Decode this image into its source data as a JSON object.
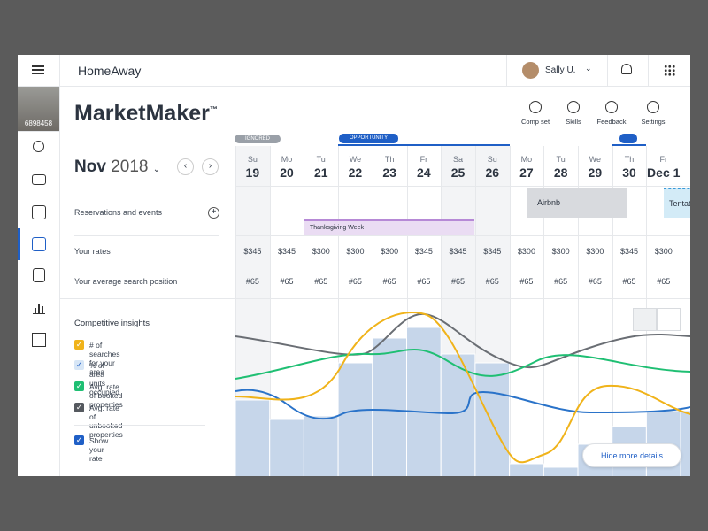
{
  "app": {
    "brand": "HomeAway",
    "user": "Sally U.",
    "listing_id": "6898458"
  },
  "header": {
    "title": "MarketMaker",
    "trademark": "™",
    "tools": [
      "Comp set",
      "Skills",
      "Feedback",
      "Settings"
    ]
  },
  "tags": {
    "ignored": "IGNORED",
    "opportunity": "OPPORTUNITY"
  },
  "calendar": {
    "month": "Nov",
    "year": "2018",
    "days": [
      {
        "weekday": "Su",
        "date": "19"
      },
      {
        "weekday": "Mo",
        "date": "20"
      },
      {
        "weekday": "Tu",
        "date": "21"
      },
      {
        "weekday": "We",
        "date": "22"
      },
      {
        "weekday": "Th",
        "date": "23"
      },
      {
        "weekday": "Fr",
        "date": "24"
      },
      {
        "weekday": "Sa",
        "date": "25"
      },
      {
        "weekday": "Su",
        "date": "26"
      },
      {
        "weekday": "Mo",
        "date": "27"
      },
      {
        "weekday": "Tu",
        "date": "28"
      },
      {
        "weekday": "We",
        "date": "29"
      },
      {
        "weekday": "Th",
        "date": "30"
      },
      {
        "weekday": "Fr",
        "date": "Dec 1"
      }
    ]
  },
  "rows": {
    "events_label": "Reservations and events",
    "rates_label": "Your rates",
    "position_label": "Your average search position"
  },
  "events": {
    "holiday": "Thanksgiving Week",
    "booking": "Airbnb",
    "tentative": "Tentat"
  },
  "rates": [
    "$345",
    "$345",
    "$300",
    "$300",
    "$300",
    "$345",
    "$345",
    "$345",
    "$300",
    "$300",
    "$300",
    "$345",
    "$300"
  ],
  "positions": [
    "#65",
    "#65",
    "#65",
    "#65",
    "#65",
    "#65",
    "#65",
    "#65",
    "#65",
    "#65",
    "#65",
    "#65",
    "#65"
  ],
  "insights": {
    "title": "Competitive insights",
    "options": [
      "# of searches for your area",
      "% of area units occupied",
      "Avg. rate of booked properties",
      "Avg. rate of unbooked properties",
      "Show your rate"
    ],
    "hide_button": "Hide more details"
  }
}
